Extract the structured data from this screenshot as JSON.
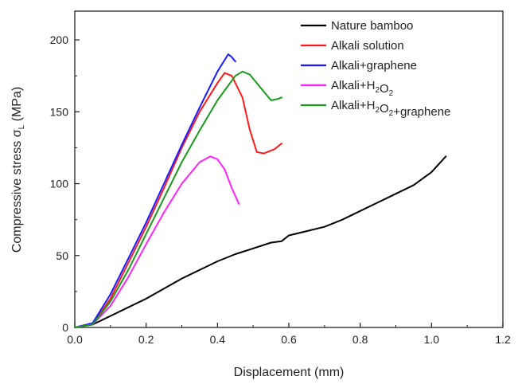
{
  "chart_data": {
    "type": "line",
    "xlabel": "Displacement (mm)",
    "ylabel": {
      "main": "Compressive stress σ",
      "sub": "L",
      "unit": " (MPa)"
    },
    "xlim": [
      0,
      1.2
    ],
    "ylim": [
      0,
      220
    ],
    "x_ticks": [
      0.0,
      0.2,
      0.4,
      0.6,
      0.8,
      1.0,
      1.2
    ],
    "x_tick_labels": [
      "0.0",
      "0.2",
      "0.4",
      "0.6",
      "0.8",
      "1.0",
      "1.2"
    ],
    "y_ticks": [
      0,
      50,
      100,
      150,
      200
    ],
    "y_tick_labels": [
      "0",
      "50",
      "100",
      "150",
      "200"
    ],
    "grid": false,
    "legend_position": "top-right",
    "series": [
      {
        "name": "Nature bamboo",
        "legend": [
          {
            "t": "Nature bamboo"
          }
        ],
        "color": "#000000",
        "points": [
          [
            0,
            0
          ],
          [
            0.05,
            2
          ],
          [
            0.1,
            8
          ],
          [
            0.15,
            14
          ],
          [
            0.2,
            20
          ],
          [
            0.25,
            27
          ],
          [
            0.3,
            34
          ],
          [
            0.35,
            40
          ],
          [
            0.4,
            46
          ],
          [
            0.45,
            51
          ],
          [
            0.5,
            55
          ],
          [
            0.55,
            59
          ],
          [
            0.58,
            60
          ],
          [
            0.6,
            64
          ],
          [
            0.65,
            67
          ],
          [
            0.7,
            70
          ],
          [
            0.75,
            75
          ],
          [
            0.8,
            81
          ],
          [
            0.85,
            87
          ],
          [
            0.9,
            93
          ],
          [
            0.95,
            99
          ],
          [
            1.0,
            108
          ],
          [
            1.04,
            119
          ]
        ]
      },
      {
        "name": "Alkali solution",
        "legend": [
          {
            "t": "Alkali solution"
          }
        ],
        "color": "#ff1a1a",
        "points": [
          [
            0,
            0
          ],
          [
            0.05,
            2
          ],
          [
            0.1,
            20
          ],
          [
            0.15,
            45
          ],
          [
            0.2,
            70
          ],
          [
            0.25,
            97
          ],
          [
            0.3,
            125
          ],
          [
            0.35,
            150
          ],
          [
            0.4,
            170
          ],
          [
            0.42,
            177
          ],
          [
            0.44,
            175
          ],
          [
            0.47,
            160
          ],
          [
            0.49,
            138
          ],
          [
            0.51,
            122
          ],
          [
            0.53,
            121
          ],
          [
            0.56,
            124
          ],
          [
            0.58,
            128
          ]
        ]
      },
      {
        "name": "Alkali+graphene",
        "legend": [
          {
            "t": "Alkali+graphene"
          }
        ],
        "color": "#1a1aff",
        "points": [
          [
            0,
            0
          ],
          [
            0.05,
            3
          ],
          [
            0.1,
            23
          ],
          [
            0.15,
            48
          ],
          [
            0.2,
            73
          ],
          [
            0.25,
            100
          ],
          [
            0.3,
            127
          ],
          [
            0.35,
            153
          ],
          [
            0.4,
            178
          ],
          [
            0.43,
            190
          ],
          [
            0.44,
            188
          ],
          [
            0.45,
            185
          ]
        ]
      },
      {
        "name": "Alkali+H2O2",
        "legend": [
          {
            "t": "Alkali+H"
          },
          {
            "t": "2",
            "sub": true
          },
          {
            "t": "O"
          },
          {
            "t": "2",
            "sub": true
          }
        ],
        "color": "#ff22ff",
        "points": [
          [
            0,
            0
          ],
          [
            0.05,
            2
          ],
          [
            0.1,
            15
          ],
          [
            0.15,
            35
          ],
          [
            0.2,
            58
          ],
          [
            0.25,
            80
          ],
          [
            0.3,
            100
          ],
          [
            0.35,
            115
          ],
          [
            0.38,
            119
          ],
          [
            0.4,
            117
          ],
          [
            0.42,
            110
          ],
          [
            0.44,
            97
          ],
          [
            0.46,
            86
          ]
        ]
      },
      {
        "name": "Alkali+H2O2+graphene",
        "legend": [
          {
            "t": "Alkali+H"
          },
          {
            "t": "2",
            "sub": true
          },
          {
            "t": "O"
          },
          {
            "t": "2",
            "sub": true
          },
          {
            "t": "+graphene"
          }
        ],
        "color": "#1a9a1a",
        "points": [
          [
            0,
            0
          ],
          [
            0.05,
            2
          ],
          [
            0.1,
            18
          ],
          [
            0.15,
            40
          ],
          [
            0.2,
            65
          ],
          [
            0.25,
            90
          ],
          [
            0.3,
            115
          ],
          [
            0.35,
            137
          ],
          [
            0.4,
            158
          ],
          [
            0.45,
            175
          ],
          [
            0.47,
            178
          ],
          [
            0.49,
            176
          ],
          [
            0.52,
            167
          ],
          [
            0.55,
            158
          ],
          [
            0.57,
            159
          ],
          [
            0.58,
            160
          ]
        ]
      }
    ]
  }
}
